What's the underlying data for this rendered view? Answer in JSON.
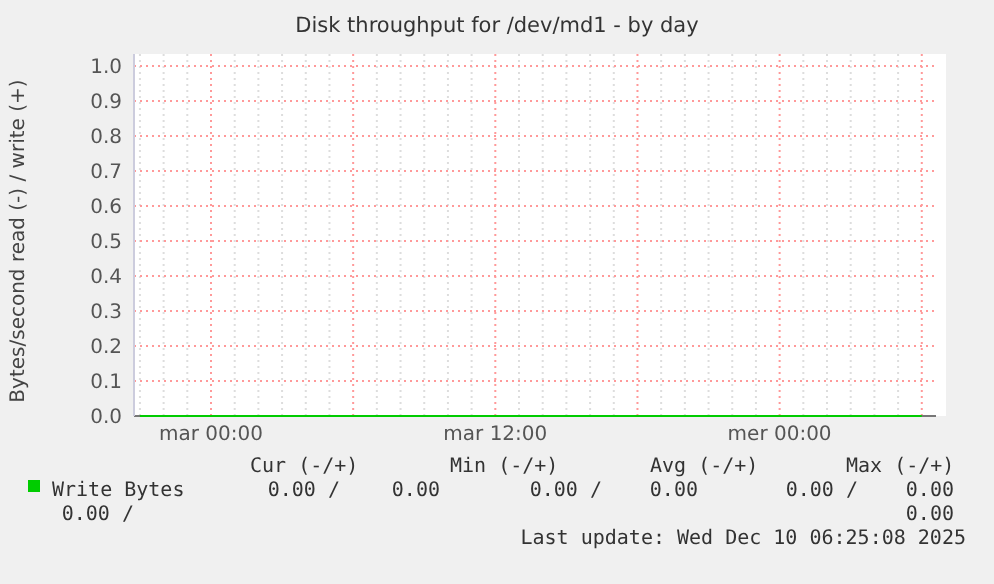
{
  "chart_data": {
    "type": "line",
    "title": "Disk throughput for /dev/md1 - by day",
    "ylabel": "Bytes/second read (-) / write (+)",
    "categories": [
      null,
      null,
      null,
      "mar 00:00",
      null,
      null,
      null,
      null,
      null,
      null,
      null,
      null,
      null,
      null,
      null,
      "mar 12:00",
      null,
      null,
      null,
      null,
      null,
      null,
      null,
      null,
      null,
      null,
      null,
      "mer 00:00",
      null,
      null,
      null,
      null,
      null,
      null
    ],
    "series": [
      {
        "name": "Write Bytes",
        "color": "#00cc00",
        "values": [
          0,
          0,
          0,
          0,
          0,
          0,
          0,
          0,
          0,
          0,
          0,
          0,
          0,
          0,
          0,
          0,
          0,
          0,
          0,
          0,
          0,
          0,
          0,
          0,
          0,
          0,
          0,
          0,
          0,
          0,
          0,
          0,
          0,
          0
        ]
      }
    ],
    "ylim": [
      0,
      1
    ],
    "yticks": [
      {
        "value": 0,
        "label": "0.0"
      },
      {
        "value": 0.1,
        "label": "0.1"
      },
      {
        "value": 0.2,
        "label": "0.2"
      },
      {
        "value": 0.3,
        "label": "0.3"
      },
      {
        "value": 0.4,
        "label": "0.4"
      },
      {
        "value": 0.5,
        "label": "0.5"
      },
      {
        "value": 0.6,
        "label": "0.6"
      },
      {
        "value": 0.7,
        "label": "0.7"
      },
      {
        "value": 0.8,
        "label": "0.8"
      },
      {
        "value": 0.9,
        "label": "0.9"
      },
      {
        "value": 1,
        "label": "1.0"
      }
    ],
    "grid": true,
    "legend": "bottom left",
    "annotations": [
      "Cur (-/+)",
      "Min (-/+)",
      "Avg (-/+)",
      "Max (-/+)",
      "0.00 /",
      "0.00",
      "0.00 /",
      "0.00",
      "0.00 /",
      "0.00",
      "0.00 /",
      "0.00",
      "Last update: Wed Dec 10 06:25:08 2025"
    ]
  }
}
